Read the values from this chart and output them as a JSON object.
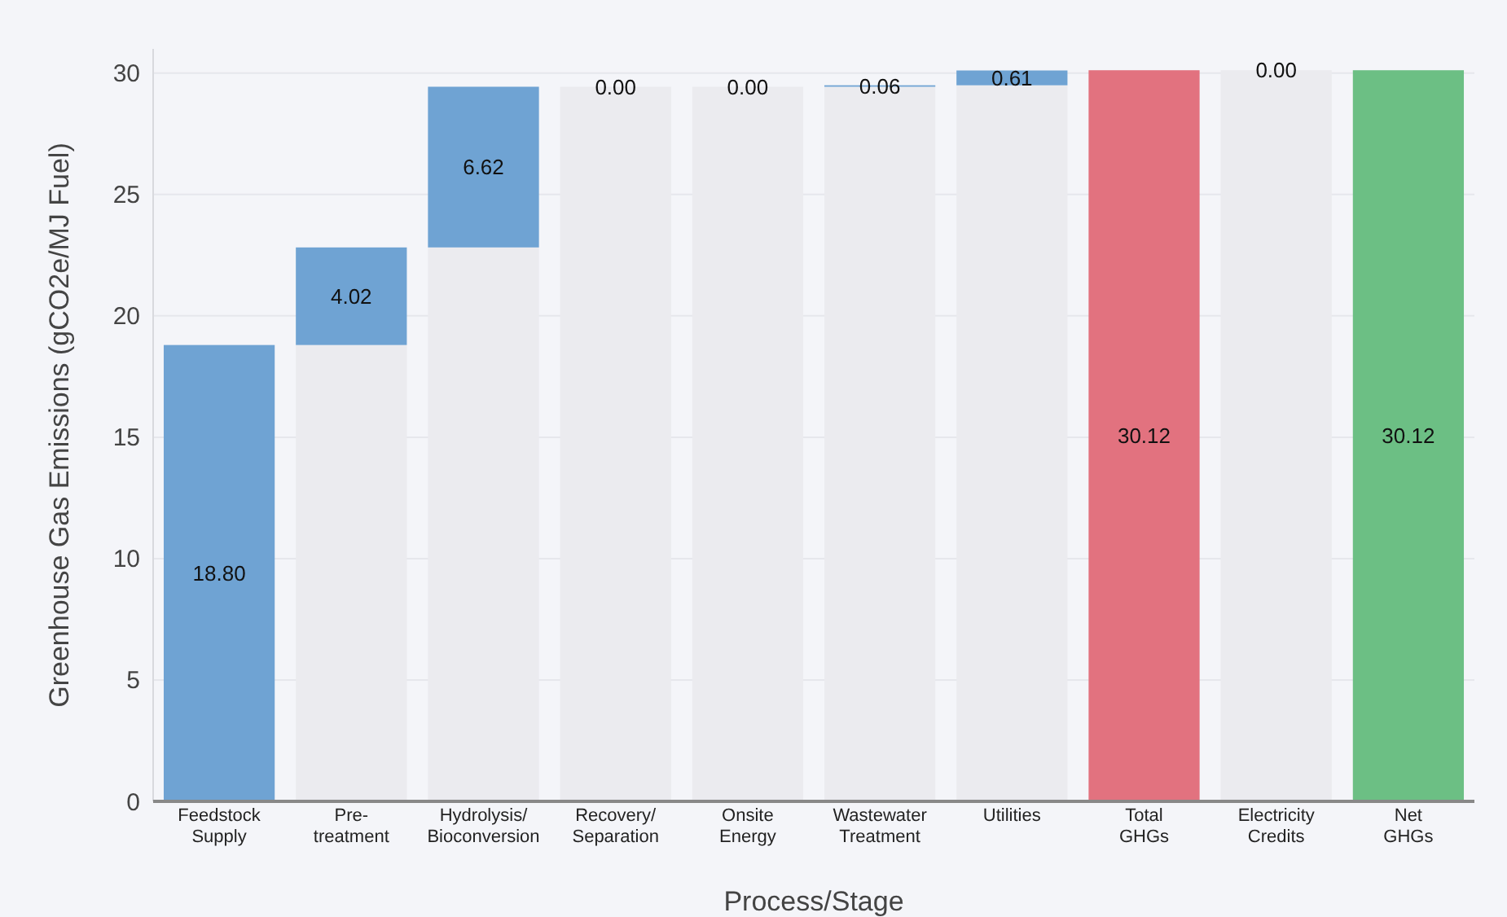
{
  "chart_data": {
    "type": "bar",
    "stacked": true,
    "xlabel": "Process/Stage",
    "ylabel": "Greenhouse Gas Emissions (gCO2e/MJ Fuel)",
    "categories": [
      "Feedstock\nSupply",
      "Pre-\ntreatment",
      "Hydrolysis/\nBioconversion",
      "Recovery/\nSeparation",
      "Onsite\nEnergy",
      "Wastewater\nTreatment",
      "Utilities",
      "Total\nGHGs",
      "Electricity\nCredits",
      "Net\nGHGs"
    ],
    "series": [
      {
        "color": "#ebebef",
        "values": [
          0,
          18.8,
          22.82,
          29.44,
          29.44,
          29.44,
          29.5,
          0,
          30.12,
          0
        ]
      },
      {
        "colors": [
          "#6fa3d3",
          "#6fa3d3",
          "#6fa3d3",
          "#6fa3d3",
          "#6fa3d3",
          "#6fa3d3",
          "#6fa3d3",
          "#e2727f",
          "#6fa3d3",
          "#6cbf84"
        ],
        "values": [
          18.8,
          4.02,
          6.62,
          0,
          0,
          0.06,
          0.61,
          30.12,
          0,
          30.12
        ],
        "value_labels": [
          "18.80",
          "4.02",
          "6.62",
          "0.00",
          "0.00",
          "0.06",
          "0.61",
          "30.12",
          "0.00",
          "30.12"
        ]
      }
    ],
    "ylim": [
      0,
      31
    ],
    "yticks": [
      0,
      5,
      10,
      15,
      20,
      25,
      30
    ],
    "grid": "y"
  }
}
